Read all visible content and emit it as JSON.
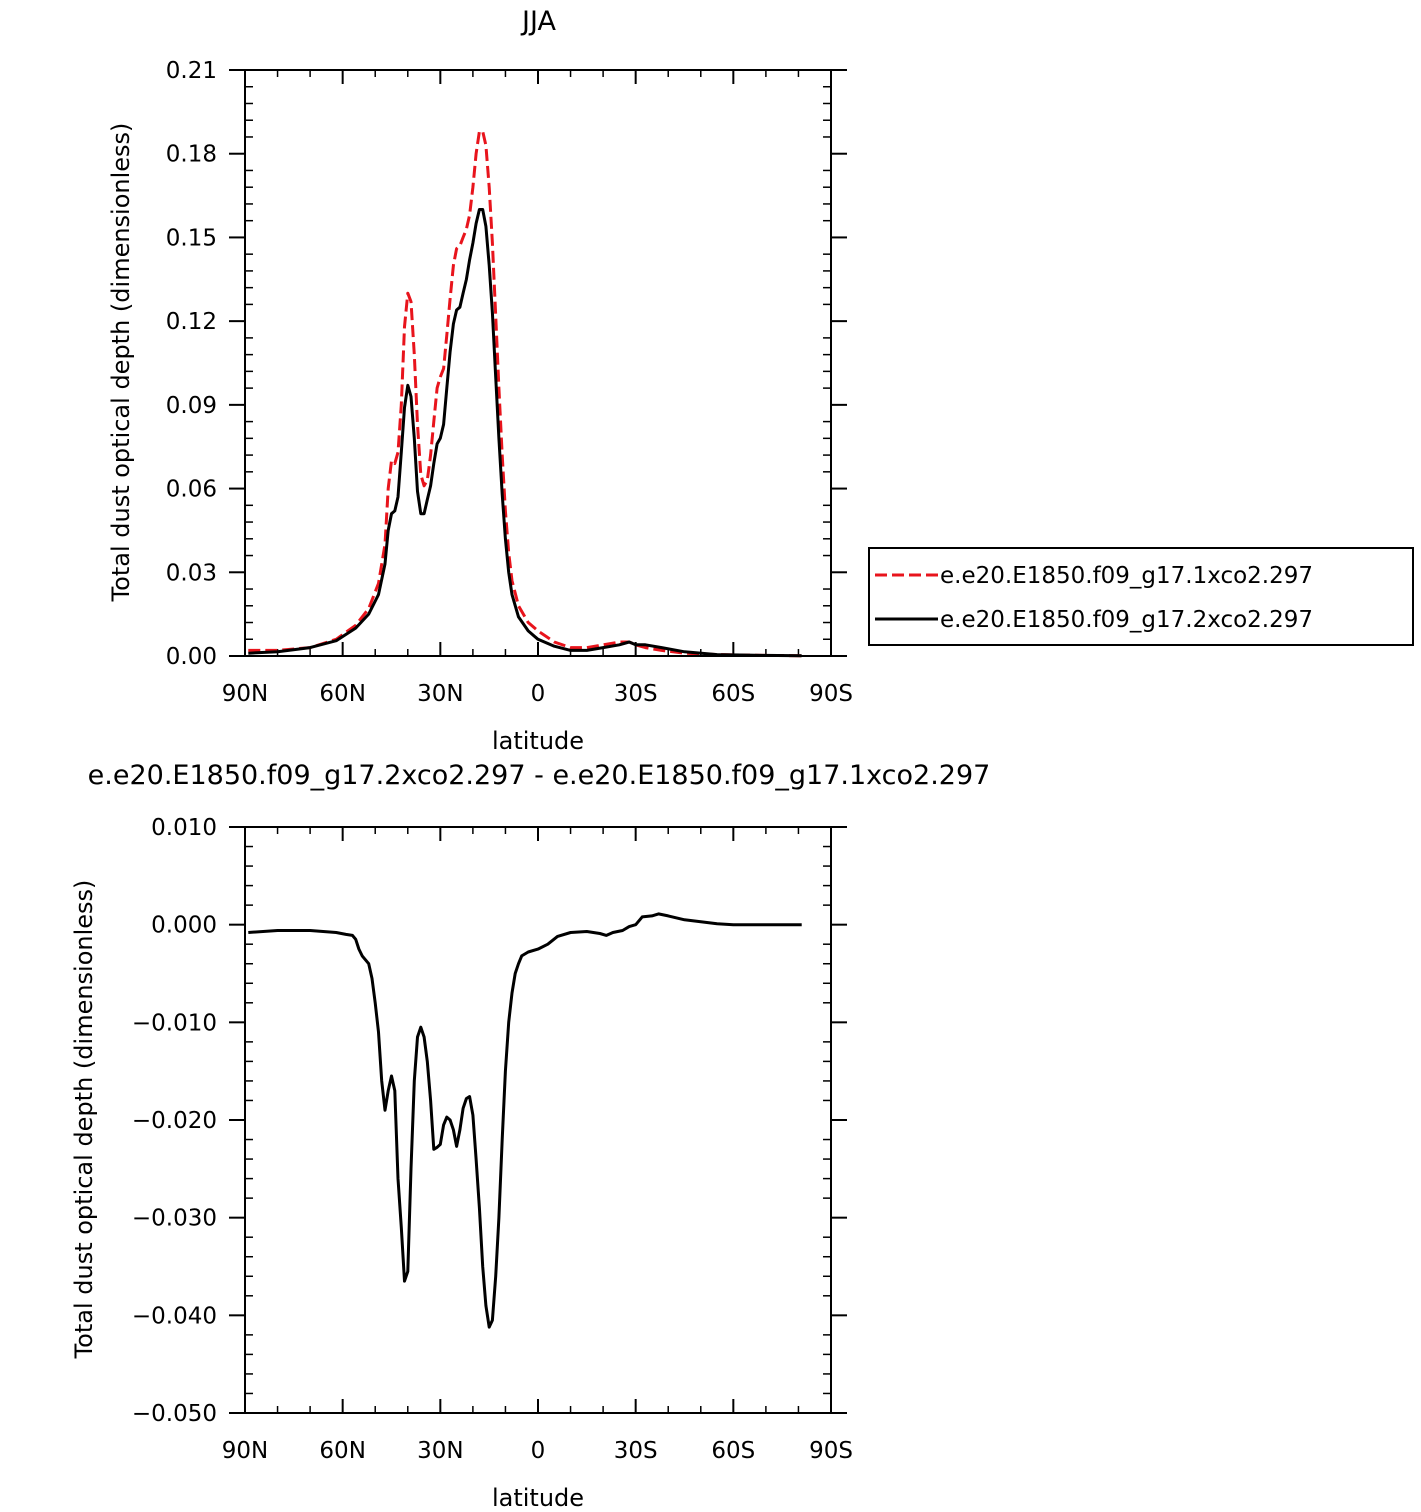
{
  "chart_data": [
    {
      "type": "line",
      "title": "JJA",
      "xlabel": "latitude",
      "ylabel": "Total dust optical depth (dimensionless)",
      "xlim": [
        90,
        -90
      ],
      "ylim": [
        0,
        0.21
      ],
      "xticks": [
        {
          "value": 90,
          "label": "90N"
        },
        {
          "value": 60,
          "label": "60N"
        },
        {
          "value": 30,
          "label": "30N"
        },
        {
          "value": 0,
          "label": "0"
        },
        {
          "value": -30,
          "label": "30S"
        },
        {
          "value": -60,
          "label": "60S"
        },
        {
          "value": -90,
          "label": "90S"
        }
      ],
      "yticks": [
        {
          "value": 0,
          "label": "0.00"
        },
        {
          "value": 0.03,
          "label": "0.03"
        },
        {
          "value": 0.06,
          "label": "0.06"
        },
        {
          "value": 0.09,
          "label": "0.09"
        },
        {
          "value": 0.12,
          "label": "0.12"
        },
        {
          "value": 0.15,
          "label": "0.15"
        },
        {
          "value": 0.18,
          "label": "0.18"
        },
        {
          "value": 0.21,
          "label": "0.21"
        }
      ],
      "grid": false,
      "legend_position": "right",
      "series": [
        {
          "name": "e.e20.E1850.f09_g17.1xco2.297",
          "color": "#e8141c",
          "dash": "dashed",
          "points": [
            [
              89,
              0.002
            ],
            [
              80,
              0.002
            ],
            [
              70,
              0.003
            ],
            [
              62,
              0.006
            ],
            [
              56,
              0.011
            ],
            [
              52,
              0.017
            ],
            [
              49,
              0.026
            ],
            [
              47,
              0.04
            ],
            [
              46,
              0.06
            ],
            [
              45,
              0.07
            ],
            [
              44,
              0.069
            ],
            [
              43,
              0.073
            ],
            [
              42,
              0.09
            ],
            [
              41,
              0.118
            ],
            [
              40,
              0.13
            ],
            [
              39,
              0.127
            ],
            [
              38,
              0.108
            ],
            [
              37,
              0.083
            ],
            [
              36,
              0.065
            ],
            [
              35,
              0.061
            ],
            [
              34,
              0.063
            ],
            [
              33,
              0.072
            ],
            [
              32,
              0.084
            ],
            [
              31,
              0.096
            ],
            [
              30,
              0.1
            ],
            [
              29,
              0.103
            ],
            [
              28,
              0.115
            ],
            [
              27,
              0.128
            ],
            [
              26,
              0.14
            ],
            [
              25,
              0.146
            ],
            [
              24,
              0.147
            ],
            [
              23,
              0.15
            ],
            [
              22,
              0.153
            ],
            [
              21,
              0.158
            ],
            [
              20,
              0.168
            ],
            [
              19,
              0.18
            ],
            [
              18,
              0.188
            ],
            [
              17,
              0.188
            ],
            [
              16,
              0.183
            ],
            [
              15,
              0.168
            ],
            [
              14,
              0.148
            ],
            [
              13,
              0.122
            ],
            [
              12,
              0.096
            ],
            [
              11,
              0.072
            ],
            [
              10,
              0.052
            ],
            [
              9,
              0.037
            ],
            [
              8,
              0.027
            ],
            [
              6,
              0.018
            ],
            [
              3,
              0.012
            ],
            [
              0,
              0.009
            ],
            [
              -5,
              0.005
            ],
            [
              -10,
              0.003
            ],
            [
              -15,
              0.003
            ],
            [
              -20,
              0.004
            ],
            [
              -25,
              0.005
            ],
            [
              -28,
              0.005
            ],
            [
              -30,
              0.004
            ],
            [
              -33,
              0.003
            ],
            [
              -38,
              0.002
            ],
            [
              -45,
              0.001
            ],
            [
              -55,
              0.0005
            ],
            [
              -70,
              0.0002
            ],
            [
              -81,
              0.0001
            ]
          ]
        },
        {
          "name": "e.e20.E1850.f09_g17.2xco2.297",
          "color": "#000000",
          "dash": "solid",
          "points": [
            [
              89,
              0.001
            ],
            [
              80,
              0.0015
            ],
            [
              70,
              0.003
            ],
            [
              62,
              0.0055
            ],
            [
              56,
              0.01
            ],
            [
              52,
              0.015
            ],
            [
              49,
              0.022
            ],
            [
              47,
              0.033
            ],
            [
              46,
              0.045
            ],
            [
              45,
              0.051
            ],
            [
              44,
              0.052
            ],
            [
              43,
              0.057
            ],
            [
              42,
              0.073
            ],
            [
              41,
              0.089
            ],
            [
              40,
              0.097
            ],
            [
              39,
              0.093
            ],
            [
              38,
              0.078
            ],
            [
              37,
              0.059
            ],
            [
              36,
              0.051
            ],
            [
              35,
              0.051
            ],
            [
              34,
              0.056
            ],
            [
              33,
              0.061
            ],
            [
              32,
              0.069
            ],
            [
              31,
              0.076
            ],
            [
              30,
              0.078
            ],
            [
              29,
              0.083
            ],
            [
              28,
              0.096
            ],
            [
              27,
              0.109
            ],
            [
              26,
              0.119
            ],
            [
              25,
              0.124
            ],
            [
              24,
              0.125
            ],
            [
              23,
              0.13
            ],
            [
              22,
              0.135
            ],
            [
              21,
              0.142
            ],
            [
              20,
              0.148
            ],
            [
              19,
              0.155
            ],
            [
              18,
              0.16
            ],
            [
              17,
              0.16
            ],
            [
              16,
              0.154
            ],
            [
              15,
              0.14
            ],
            [
              14,
              0.123
            ],
            [
              13,
              0.1
            ],
            [
              12,
              0.078
            ],
            [
              11,
              0.058
            ],
            [
              10,
              0.042
            ],
            [
              9,
              0.03
            ],
            [
              8,
              0.022
            ],
            [
              6,
              0.014
            ],
            [
              3,
              0.009
            ],
            [
              0,
              0.006
            ],
            [
              -5,
              0.0035
            ],
            [
              -10,
              0.002
            ],
            [
              -15,
              0.002
            ],
            [
              -20,
              0.003
            ],
            [
              -25,
              0.004
            ],
            [
              -28,
              0.005
            ],
            [
              -30,
              0.004
            ],
            [
              -33,
              0.004
            ],
            [
              -38,
              0.003
            ],
            [
              -45,
              0.0015
            ],
            [
              -55,
              0.0005
            ],
            [
              -70,
              0.0002
            ],
            [
              -81,
              0.0001
            ]
          ]
        }
      ]
    },
    {
      "type": "line",
      "title": "e.e20.E1850.f09_g17.2xco2.297 - e.e20.E1850.f09_g17.1xco2.297",
      "xlabel": "latitude",
      "ylabel": "Total dust optical depth (dimensionless)",
      "xlim": [
        90,
        -90
      ],
      "ylim": [
        -0.05,
        0.01
      ],
      "xticks": [
        {
          "value": 90,
          "label": "90N"
        },
        {
          "value": 60,
          "label": "60N"
        },
        {
          "value": 30,
          "label": "30N"
        },
        {
          "value": 0,
          "label": "0"
        },
        {
          "value": -30,
          "label": "30S"
        },
        {
          "value": -60,
          "label": "60S"
        },
        {
          "value": -90,
          "label": "90S"
        }
      ],
      "yticks": [
        {
          "value": 0.01,
          "label": "0.010"
        },
        {
          "value": 0,
          "label": "0.000"
        },
        {
          "value": -0.01,
          "label": "−0.010"
        },
        {
          "value": -0.02,
          "label": "−0.020"
        },
        {
          "value": -0.03,
          "label": "−0.030"
        },
        {
          "value": -0.04,
          "label": "−0.040"
        },
        {
          "value": -0.05,
          "label": "−0.050"
        }
      ],
      "grid": false,
      "series": [
        {
          "color": "#000000",
          "dash": "solid",
          "points": [
            [
              89,
              -0.0008
            ],
            [
              80,
              -0.0006
            ],
            [
              70,
              -0.0006
            ],
            [
              62,
              -0.0008
            ],
            [
              59,
              -0.001
            ],
            [
              57,
              -0.0011
            ],
            [
              56,
              -0.0015
            ],
            [
              55,
              -0.0025
            ],
            [
              54,
              -0.0032
            ],
            [
              52,
              -0.004
            ],
            [
              51,
              -0.0055
            ],
            [
              50,
              -0.008
            ],
            [
              49,
              -0.011
            ],
            [
              48,
              -0.016
            ],
            [
              47,
              -0.019
            ],
            [
              46,
              -0.017
            ],
            [
              45,
              -0.0155
            ],
            [
              44,
              -0.017
            ],
            [
              43,
              -0.026
            ],
            [
              42,
              -0.031
            ],
            [
              41,
              -0.0365
            ],
            [
              40,
              -0.0355
            ],
            [
              39,
              -0.025
            ],
            [
              38,
              -0.016
            ],
            [
              37,
              -0.0115
            ],
            [
              36,
              -0.0105
            ],
            [
              35,
              -0.0115
            ],
            [
              34,
              -0.014
            ],
            [
              33,
              -0.018
            ],
            [
              32,
              -0.023
            ],
            [
              31,
              -0.0228
            ],
            [
              30,
              -0.0225
            ],
            [
              29,
              -0.0205
            ],
            [
              28,
              -0.0197
            ],
            [
              27,
              -0.02
            ],
            [
              26,
              -0.021
            ],
            [
              25,
              -0.0227
            ],
            [
              24,
              -0.021
            ],
            [
              23,
              -0.0188
            ],
            [
              22,
              -0.0178
            ],
            [
              21,
              -0.0176
            ],
            [
              20,
              -0.0195
            ],
            [
              19,
              -0.024
            ],
            [
              18,
              -0.029
            ],
            [
              17,
              -0.035
            ],
            [
              16,
              -0.039
            ],
            [
              15,
              -0.0412
            ],
            [
              14,
              -0.0405
            ],
            [
              13,
              -0.036
            ],
            [
              12,
              -0.03
            ],
            [
              11,
              -0.022
            ],
            [
              10,
              -0.015
            ],
            [
              9,
              -0.01
            ],
            [
              8,
              -0.007
            ],
            [
              7,
              -0.005
            ],
            [
              6,
              -0.004
            ],
            [
              5,
              -0.0032
            ],
            [
              3,
              -0.0028
            ],
            [
              0,
              -0.0025
            ],
            [
              -3,
              -0.002
            ],
            [
              -6,
              -0.0012
            ],
            [
              -10,
              -0.0008
            ],
            [
              -15,
              -0.0007
            ],
            [
              -19,
              -0.0009
            ],
            [
              -21,
              -0.0011
            ],
            [
              -23,
              -0.0008
            ],
            [
              -26,
              -0.0006
            ],
            [
              -28,
              -0.0002
            ],
            [
              -30,
              0
            ],
            [
              -32,
              0.0008
            ],
            [
              -35,
              0.0009
            ],
            [
              -37,
              0.0011
            ],
            [
              -40,
              0.0009
            ],
            [
              -45,
              0.0005
            ],
            [
              -50,
              0.0003
            ],
            [
              -55,
              0.0001
            ],
            [
              -60,
              0
            ],
            [
              -70,
              0
            ],
            [
              -81,
              0
            ]
          ]
        }
      ]
    }
  ]
}
